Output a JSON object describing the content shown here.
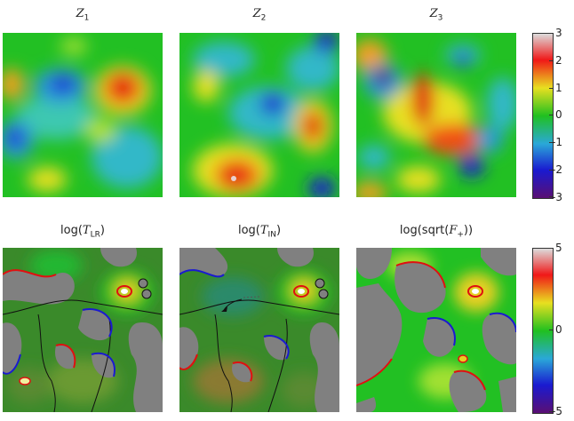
{
  "top_row": {
    "titles": [
      {
        "sym": "Z",
        "sub": "1"
      },
      {
        "sym": "Z",
        "sub": "2"
      },
      {
        "sym": "Z",
        "sub": "3"
      }
    ],
    "colorbar_ticks": [
      "3",
      "2",
      "1",
      "0",
      "-1",
      "-2",
      "-3"
    ]
  },
  "bottom_row": {
    "titles": [
      {
        "pre": "log(",
        "sym": "T",
        "sub": "LR",
        "post": ")"
      },
      {
        "pre": "log(",
        "sym": "T",
        "sub": "IN",
        "post": ")"
      },
      {
        "pre": "log(sqrt(",
        "sym": "F",
        "sub": "+",
        "post": "))"
      }
    ],
    "colorbar_ticks": [
      "5",
      "0",
      "-5"
    ]
  },
  "colors": {
    "masked": "#808080",
    "colormap": [
      "#5a0f73",
      "#1a1ad0",
      "#2aa8d8",
      "#20c020",
      "#e8e020",
      "#f01818",
      "#dcdcdc"
    ]
  }
}
